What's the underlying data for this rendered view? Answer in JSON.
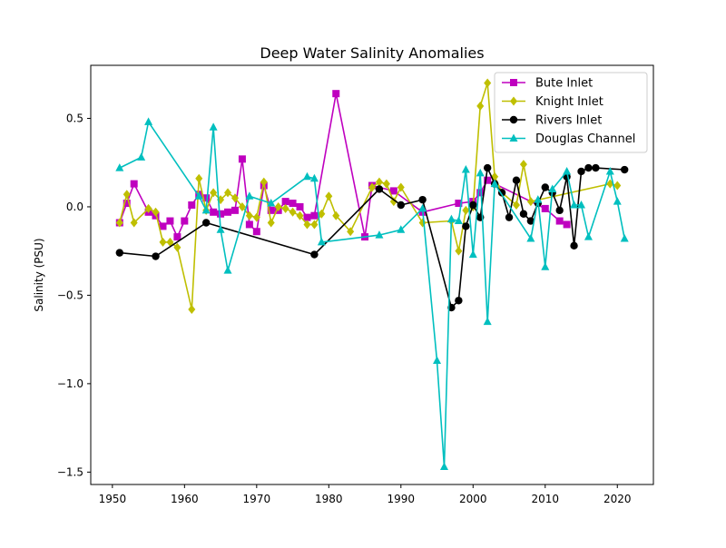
{
  "chart_data": {
    "type": "line",
    "title": "Deep Water Salinity Anomalies",
    "xlabel": "",
    "ylabel": "Salinity (PSU)",
    "xlim": [
      1947,
      2025
    ],
    "ylim": [
      -1.57,
      0.8
    ],
    "x_ticks": [
      1950,
      1960,
      1970,
      1980,
      1990,
      2000,
      2010,
      2020
    ],
    "y_ticks": [
      -1.5,
      -1.0,
      -0.5,
      0.0,
      0.5
    ],
    "y_tick_labels": [
      "−1.5",
      "−1.0",
      "−0.5",
      "0.0",
      "0.5"
    ],
    "grid": false,
    "legend": "top-right",
    "series": [
      {
        "name": "Bute Inlet",
        "color": "#bf00bf",
        "marker": "square",
        "x": [
          1951,
          1952,
          1953,
          1955,
          1956,
          1957,
          1958,
          1959,
          1960,
          1961,
          1962,
          1963,
          1964,
          1965,
          1966,
          1967,
          1968,
          1969,
          1970,
          1971,
          1972,
          1973,
          1974,
          1975,
          1976,
          1977,
          1978,
          1981,
          1985,
          1986,
          1989,
          1993,
          1998,
          2000,
          2001,
          2002,
          2010,
          2012,
          2013
        ],
        "y": [
          -0.09,
          0.02,
          0.13,
          -0.03,
          -0.05,
          -0.11,
          -0.08,
          -0.17,
          -0.08,
          0.01,
          0.07,
          0.05,
          -0.03,
          -0.04,
          -0.03,
          -0.02,
          0.27,
          -0.1,
          -0.14,
          0.12,
          -0.02,
          -0.02,
          0.03,
          0.02,
          0.0,
          -0.06,
          -0.05,
          0.64,
          -0.17,
          0.12,
          0.09,
          -0.03,
          0.02,
          0.03,
          0.08,
          0.15,
          -0.01,
          -0.08,
          -0.1
        ]
      },
      {
        "name": "Knight Inlet",
        "color": "#bfbf00",
        "marker": "diamond",
        "x": [
          1951,
          1952,
          1953,
          1955,
          1956,
          1957,
          1958,
          1959,
          1961,
          1962,
          1963,
          1964,
          1965,
          1966,
          1967,
          1968,
          1969,
          1970,
          1971,
          1972,
          1973,
          1974,
          1975,
          1976,
          1977,
          1978,
          1979,
          1980,
          1981,
          1983,
          1986,
          1987,
          1988,
          1989,
          1990,
          1993,
          1997,
          1998,
          1999,
          2000,
          2001,
          2002,
          2003,
          2004,
          2006,
          2007,
          2008,
          2019,
          2020
        ],
        "y": [
          -0.09,
          0.07,
          -0.09,
          -0.01,
          -0.03,
          -0.2,
          -0.2,
          -0.23,
          -0.58,
          0.16,
          -0.02,
          0.08,
          0.04,
          0.08,
          0.05,
          0.0,
          -0.05,
          -0.06,
          0.14,
          -0.09,
          0.0,
          -0.01,
          -0.03,
          -0.05,
          -0.1,
          -0.1,
          -0.04,
          0.06,
          -0.05,
          -0.14,
          0.11,
          0.14,
          0.13,
          0.03,
          0.11,
          -0.09,
          -0.08,
          -0.25,
          -0.02,
          0.0,
          0.57,
          0.7,
          0.17,
          0.08,
          0.01,
          0.24,
          0.03,
          0.13,
          0.12
        ]
      },
      {
        "name": "Rivers Inlet",
        "color": "#000000",
        "marker": "circle",
        "x": [
          1951,
          1956,
          1963,
          1978,
          1987,
          1990,
          1993,
          1997,
          1998,
          1999,
          2000,
          2001,
          2002,
          2003,
          2004,
          2005,
          2006,
          2007,
          2008,
          2009,
          2010,
          2011,
          2012,
          2013,
          2014,
          2015,
          2016,
          2017,
          2021
        ],
        "y": [
          -0.26,
          -0.28,
          -0.09,
          -0.27,
          0.1,
          0.01,
          0.04,
          -0.57,
          -0.53,
          -0.11,
          0.01,
          -0.06,
          0.22,
          0.13,
          0.08,
          -0.06,
          0.15,
          -0.04,
          -0.08,
          0.02,
          0.11,
          0.08,
          -0.02,
          0.17,
          -0.22,
          0.2,
          0.22,
          0.22,
          0.21
        ]
      },
      {
        "name": "Douglas Channel",
        "color": "#00bfbf",
        "marker": "triangle",
        "x": [
          1951,
          1954,
          1955,
          1962,
          1963,
          1964,
          1965,
          1966,
          1969,
          1972,
          1977,
          1978,
          1979,
          1987,
          1990,
          1993,
          1995,
          1996,
          1997,
          1998,
          1999,
          2000,
          2001,
          2002,
          2003,
          2008,
          2009,
          2010,
          2011,
          2013,
          2014,
          2015,
          2016,
          2019,
          2020,
          2021
        ],
        "y": [
          0.22,
          0.28,
          0.48,
          0.06,
          -0.02,
          0.45,
          -0.13,
          -0.36,
          0.06,
          0.02,
          0.17,
          0.16,
          -0.2,
          -0.16,
          -0.13,
          -0.01,
          -0.87,
          -1.47,
          -0.07,
          -0.08,
          0.21,
          -0.27,
          0.19,
          -0.65,
          0.13,
          -0.18,
          0.04,
          -0.34,
          0.1,
          0.2,
          0.01,
          0.01,
          -0.17,
          0.2,
          0.03,
          -0.18
        ]
      }
    ]
  }
}
